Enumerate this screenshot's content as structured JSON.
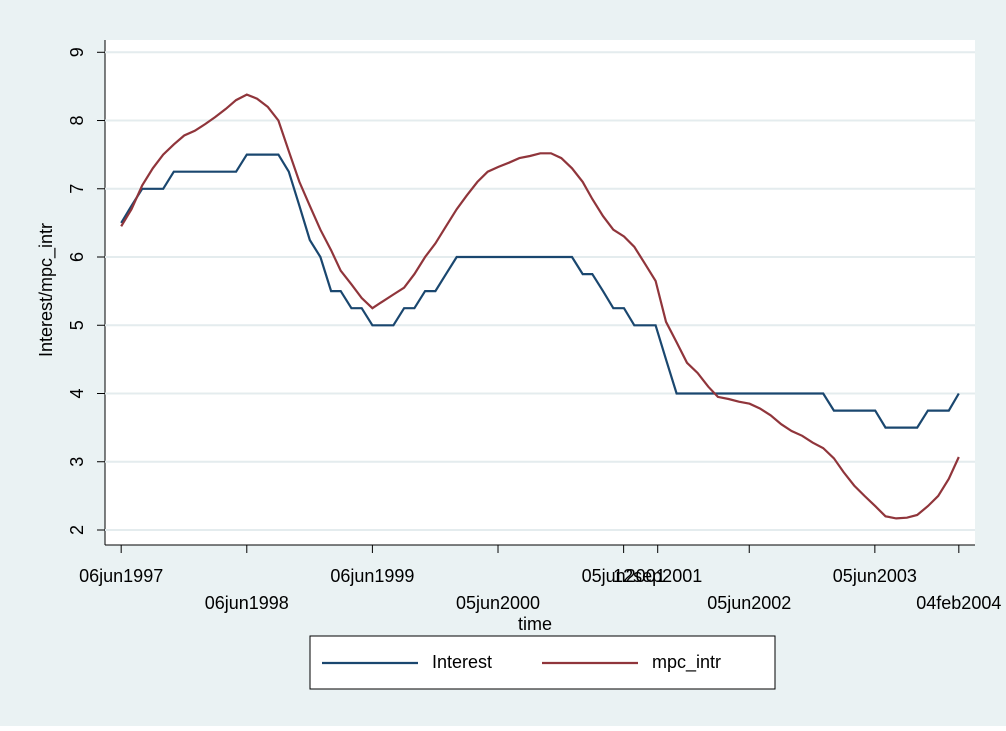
{
  "chart_data": {
    "type": "line",
    "xlabel": "time",
    "ylabel": "Interest/mpc_intr",
    "x": [
      "1997-06-06",
      "1997-07-06",
      "1997-08-06",
      "1997-09-06",
      "1997-10-06",
      "1997-11-06",
      "1997-12-06",
      "1998-01-06",
      "1998-02-06",
      "1998-03-06",
      "1998-04-06",
      "1998-05-06",
      "1998-06-06",
      "1998-07-06",
      "1998-08-06",
      "1998-09-06",
      "1998-10-06",
      "1998-11-06",
      "1998-12-06",
      "1999-01-06",
      "1999-02-06",
      "1999-03-06",
      "1999-04-06",
      "1999-05-06",
      "1999-06-06",
      "1999-07-06",
      "1999-08-06",
      "1999-09-06",
      "1999-10-06",
      "1999-11-06",
      "1999-12-06",
      "2000-01-06",
      "2000-02-06",
      "2000-03-06",
      "2000-04-06",
      "2000-05-06",
      "2000-06-06",
      "2000-07-06",
      "2000-08-06",
      "2000-09-06",
      "2000-10-06",
      "2000-11-06",
      "2000-12-06",
      "2001-01-06",
      "2001-02-06",
      "2001-03-06",
      "2001-04-06",
      "2001-05-06",
      "2001-06-06",
      "2001-07-06",
      "2001-08-06",
      "2001-09-06",
      "2001-10-06",
      "2001-11-06",
      "2001-12-06",
      "2002-01-06",
      "2002-02-06",
      "2002-03-06",
      "2002-04-06",
      "2002-05-06",
      "2002-06-06",
      "2002-07-06",
      "2002-08-06",
      "2002-09-06",
      "2002-10-06",
      "2002-11-06",
      "2002-12-06",
      "2003-01-06",
      "2003-02-06",
      "2003-03-06",
      "2003-04-06",
      "2003-05-06",
      "2003-06-06",
      "2003-07-06",
      "2003-08-06",
      "2003-09-06",
      "2003-10-06",
      "2003-11-06",
      "2003-12-06",
      "2004-01-06",
      "2004-02-04"
    ],
    "series": [
      {
        "name": "Interest",
        "color": "#1a476f",
        "values": [
          6.5,
          6.75,
          7,
          7,
          7,
          7.25,
          7.25,
          7.25,
          7.25,
          7.25,
          7.25,
          7.25,
          7.5,
          7.5,
          7.5,
          7.5,
          7.25,
          6.75,
          6.25,
          6,
          5.5,
          5.5,
          5.25,
          5.25,
          5,
          5,
          5,
          5.25,
          5.25,
          5.5,
          5.5,
          5.75,
          6,
          6,
          6,
          6,
          6,
          6,
          6,
          6,
          6,
          6,
          6,
          6,
          5.75,
          5.75,
          5.5,
          5.25,
          5.25,
          5,
          5,
          5,
          4.5,
          4,
          4,
          4,
          4,
          4,
          4,
          4,
          4,
          4,
          4,
          4,
          4,
          4,
          4,
          4,
          3.75,
          3.75,
          3.75,
          3.75,
          3.75,
          3.5,
          3.5,
          3.5,
          3.5,
          3.75,
          3.75,
          3.75,
          4
        ]
      },
      {
        "name": "mpc_intr",
        "color": "#90353b",
        "values": [
          6.45,
          6.7,
          7.05,
          7.3,
          7.5,
          7.65,
          7.78,
          7.85,
          7.95,
          8.05,
          8.17,
          8.3,
          8.38,
          8.32,
          8.2,
          8,
          7.55,
          7.1,
          6.75,
          6.4,
          6.1,
          5.8,
          5.6,
          5.4,
          5.25,
          5.35,
          5.45,
          5.55,
          5.75,
          6,
          6.2,
          6.45,
          6.7,
          6.9,
          7.1,
          7.25,
          7.32,
          7.38,
          7.45,
          7.48,
          7.52,
          7.52,
          7.45,
          7.3,
          7.1,
          6.85,
          6.6,
          6.4,
          6.3,
          6.15,
          5.9,
          5.65,
          5.05,
          4.75,
          4.45,
          4.3,
          4.1,
          3.95,
          3.92,
          3.88,
          3.85,
          3.78,
          3.68,
          3.55,
          3.45,
          3.38,
          3.28,
          3.2,
          3.05,
          2.85,
          2.65,
          2.5,
          2.35,
          2.2,
          2.17,
          2.18,
          2.22,
          2.35,
          2.5,
          2.75,
          3.07
        ]
      }
    ],
    "xlim": [
      "1997-04-20",
      "2004-03-22"
    ],
    "xticks": [
      {
        "value": "1997-06-06",
        "label": "06jun1997"
      },
      {
        "value": "1998-06-06",
        "label": "06jun1998"
      },
      {
        "value": "1999-06-06",
        "label": "06jun1999"
      },
      {
        "value": "2000-06-05",
        "label": "05jun2000"
      },
      {
        "value": "2001-06-05",
        "label": "05jun2001"
      },
      {
        "value": "2001-09-12",
        "label": "12sep2001"
      },
      {
        "value": "2002-06-05",
        "label": "05jun2002"
      },
      {
        "value": "2003-06-05",
        "label": "05jun2003"
      },
      {
        "value": "2004-02-04",
        "label": "04feb2004"
      }
    ],
    "ylim": [
      1.78,
      9.18
    ],
    "yticks": [
      2,
      3,
      4,
      5,
      6,
      7,
      8,
      9
    ],
    "grid": true
  }
}
